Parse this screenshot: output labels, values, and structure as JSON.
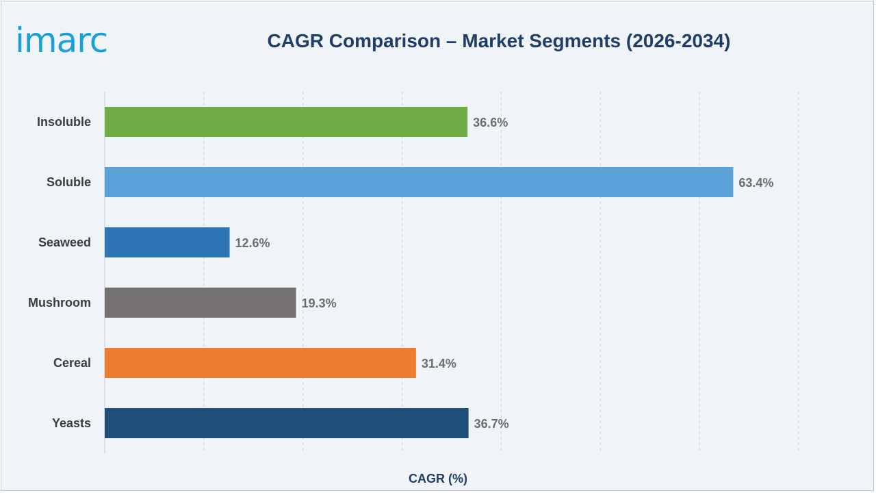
{
  "brand": {
    "logo_text": "imarc",
    "logo_color": "#1aa0d8"
  },
  "chart_data": {
    "type": "bar",
    "orientation": "horizontal",
    "title": "CAGR Comparison – Market Segments (2026-2034)",
    "xlabel": "CAGR (%)",
    "ylabel": "",
    "categories": [
      "Insoluble",
      "Soluble",
      "Seaweed",
      "Mushroom",
      "Cereal",
      "Yeasts"
    ],
    "values": [
      36.6,
      63.4,
      12.6,
      19.3,
      31.4,
      36.7
    ],
    "value_labels": [
      "36.6%",
      "63.4%",
      "12.6%",
      "19.3%",
      "31.4%",
      "36.7%"
    ],
    "colors": [
      "#70ad47",
      "#5ba3d9",
      "#2e75b6",
      "#767171",
      "#ed7d31",
      "#1f4e79"
    ],
    "xlim": [
      0,
      70
    ],
    "grid": true,
    "legend": "none"
  }
}
